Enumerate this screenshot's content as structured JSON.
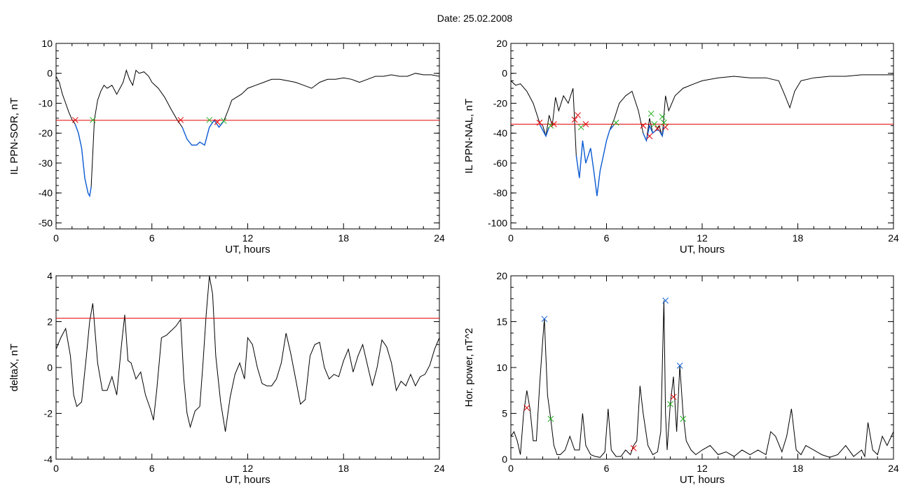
{
  "page": {
    "title": "Date:  25.02.2008"
  },
  "chart_data": [
    {
      "id": "il-sor",
      "type": "line",
      "title": "",
      "xlabel": "UT, hours",
      "ylabel": "IL PPN-SOR, nT",
      "xlim": [
        0,
        24
      ],
      "ylim": [
        -52,
        10
      ],
      "xticks": [
        0,
        6,
        12,
        18,
        24
      ],
      "yticks": [
        10,
        0,
        -10,
        -20,
        -30,
        -40,
        -50
      ],
      "threshold": {
        "value": -15.7,
        "color": "#e00000"
      },
      "series": [
        {
          "color": "#000000",
          "x": [
            0,
            0.2,
            0.4,
            0.6,
            0.8,
            1.0,
            1.2,
            1.4,
            1.6,
            1.8,
            2.0,
            2.1,
            2.2,
            2.4,
            2.6,
            2.8,
            3.0,
            3.2,
            3.5,
            3.8,
            4.0,
            4.2,
            4.4,
            4.6,
            4.8,
            5.0,
            5.2,
            5.5,
            5.8,
            6.0,
            6.4,
            6.8,
            7.2,
            7.6,
            7.9,
            8.2,
            8.5,
            8.8,
            9.0,
            9.3,
            9.6,
            9.9,
            10.2,
            10.5,
            10.8,
            11.0,
            11.3,
            11.6,
            12.0,
            12.5,
            13.0,
            13.5,
            14.0,
            14.5,
            15.0,
            15.5,
            16.0,
            16.5,
            17.0,
            17.5,
            18.0,
            18.5,
            19.0,
            19.5,
            20.0,
            20.5,
            21.0,
            21.5,
            22.0,
            22.5,
            23.0,
            23.5,
            24.0
          ],
          "y": [
            -1,
            -3,
            -7,
            -10,
            -13,
            -15.5,
            -17,
            -20,
            -25,
            -35,
            -40,
            -41,
            -38,
            -15.5,
            -9,
            -6,
            -4,
            -5,
            -4,
            -7,
            -5,
            -3,
            1,
            -2,
            -4,
            1,
            0,
            0.5,
            -1,
            -3,
            -5,
            -8,
            -12,
            -15.7,
            -18,
            -22,
            -24,
            -24,
            -23,
            -24,
            -18,
            -15.7,
            -18,
            -16,
            -12,
            -9,
            -8,
            -7,
            -5,
            -4,
            -3,
            -2,
            -2,
            -2.5,
            -3,
            -4,
            -5,
            -3,
            -2,
            -2,
            -1.5,
            -2,
            -3,
            -2,
            -1,
            -1,
            -0.5,
            -1,
            -1,
            0,
            -0.5,
            -0.5,
            -1
          ]
        },
        {
          "color": "#1060d8",
          "x": [
            1.2,
            1.4,
            1.6,
            1.8,
            2.0,
            2.1,
            2.2
          ],
          "y": [
            -17,
            -20,
            -25,
            -35,
            -40,
            -41,
            -38
          ]
        },
        {
          "color": "#1060d8",
          "x": [
            7.9,
            8.2,
            8.5,
            8.8,
            9.0,
            9.3,
            9.6,
            9.9,
            10.2,
            10.5
          ],
          "y": [
            -18,
            -22,
            -24,
            -24,
            -23,
            -24,
            -18,
            -15.7,
            -18,
            -16
          ]
        }
      ],
      "markers": [
        {
          "x": 1.2,
          "y": -15.6,
          "color": "#e00000"
        },
        {
          "x": 2.3,
          "y": -15.6,
          "color": "#20b020"
        },
        {
          "x": 7.8,
          "y": -15.6,
          "color": "#e00000"
        },
        {
          "x": 9.6,
          "y": -15.6,
          "color": "#20b020"
        },
        {
          "x": 10.1,
          "y": -16.3,
          "color": "#e00000"
        },
        {
          "x": 10.5,
          "y": -15.9,
          "color": "#20b020"
        }
      ]
    },
    {
      "id": "il-nal",
      "type": "line",
      "title": "",
      "xlabel": "UT, hours",
      "ylabel": "IL PPN-NAL, nT",
      "xlim": [
        0,
        24
      ],
      "ylim": [
        -104,
        20
      ],
      "xticks": [
        0,
        6,
        12,
        18,
        24
      ],
      "yticks": [
        20,
        0,
        -20,
        -40,
        -60,
        -80,
        -100
      ],
      "threshold": {
        "value": -34,
        "color": "#e00000"
      },
      "series": [
        {
          "color": "#000000",
          "x": [
            0,
            0.3,
            0.6,
            1.0,
            1.4,
            1.8,
            2.0,
            2.2,
            2.4,
            2.6,
            2.8,
            3.0,
            3.3,
            3.6,
            3.9,
            4.1,
            4.3,
            4.5,
            4.7,
            5.0,
            5.2,
            5.4,
            5.6,
            5.8,
            6.0,
            6.2,
            6.5,
            6.8,
            7.2,
            7.6,
            8.0,
            8.3,
            8.5,
            8.7,
            8.9,
            9.1,
            9.3,
            9.5,
            9.7,
            9.9,
            10.3,
            10.8,
            11.5,
            12.0,
            13.0,
            14.0,
            15.0,
            16.0,
            16.8,
            17.2,
            17.5,
            17.8,
            18.2,
            19.0,
            20.0,
            21.0,
            22.0,
            23.0,
            24.0
          ],
          "y": [
            -5,
            -8,
            -7,
            -12,
            -20,
            -33,
            -35,
            -42,
            -28,
            -35,
            -16,
            -25,
            -15,
            -20,
            -10,
            -55,
            -70,
            -45,
            -60,
            -50,
            -65,
            -82,
            -65,
            -55,
            -45,
            -38,
            -30,
            -20,
            -15,
            -12,
            -25,
            -40,
            -45,
            -30,
            -40,
            -38,
            -35,
            -42,
            -15,
            -25,
            -15,
            -10,
            -7,
            -5,
            -3,
            -2,
            -3,
            -3,
            -5,
            -15,
            -23,
            -12,
            -5,
            -3,
            -2,
            -2,
            -1,
            -1,
            -1
          ]
        },
        {
          "color": "#1060d8",
          "x": [
            1.8,
            2.0,
            2.2,
            2.4
          ],
          "y": [
            -34,
            -38,
            -42,
            -36
          ]
        },
        {
          "color": "#1060d8",
          "x": [
            4.1,
            4.3,
            4.5,
            4.7,
            5.0,
            5.2,
            5.4,
            5.6,
            5.8,
            6.0,
            6.2,
            6.5
          ],
          "y": [
            -55,
            -70,
            -45,
            -60,
            -50,
            -65,
            -82,
            -65,
            -55,
            -45,
            -38,
            -34
          ]
        },
        {
          "color": "#1060d8",
          "x": [
            8.3,
            8.5,
            8.7,
            8.9,
            9.1,
            9.3,
            9.5,
            9.6
          ],
          "y": [
            -40,
            -45,
            -35,
            -40,
            -38,
            -38,
            -42,
            -36
          ]
        }
      ],
      "markers": [
        {
          "x": 1.8,
          "y": -33,
          "color": "#e00000"
        },
        {
          "x": 2.5,
          "y": -35,
          "color": "#20b020"
        },
        {
          "x": 2.7,
          "y": -34,
          "color": "#e00000"
        },
        {
          "x": 4.0,
          "y": -31,
          "color": "#e00000"
        },
        {
          "x": 4.2,
          "y": -28,
          "color": "#e00000"
        },
        {
          "x": 4.4,
          "y": -36,
          "color": "#20b020"
        },
        {
          "x": 4.7,
          "y": -34,
          "color": "#e00000"
        },
        {
          "x": 6.6,
          "y": -33,
          "color": "#20b020"
        },
        {
          "x": 8.3,
          "y": -35,
          "color": "#e00000"
        },
        {
          "x": 8.7,
          "y": -42,
          "color": "#e00000"
        },
        {
          "x": 8.8,
          "y": -27,
          "color": "#20b020"
        },
        {
          "x": 9.0,
          "y": -34,
          "color": "#20b020"
        },
        {
          "x": 9.2,
          "y": -37,
          "color": "#e00000"
        },
        {
          "x": 9.5,
          "y": -29,
          "color": "#20b020"
        },
        {
          "x": 9.6,
          "y": -33,
          "color": "#20b020"
        },
        {
          "x": 9.7,
          "y": -36,
          "color": "#e00000"
        }
      ]
    },
    {
      "id": "deltax",
      "type": "line",
      "title": "",
      "xlabel": "UT, hours",
      "ylabel": "deltaX, nT",
      "xlim": [
        0,
        24
      ],
      "ylim": [
        -4,
        4
      ],
      "xticks": [
        0,
        6,
        12,
        18,
        24
      ],
      "yticks": [
        4,
        2,
        0,
        -2,
        -4
      ],
      "threshold": {
        "value": 2.15,
        "color": "#e00000"
      },
      "series": [
        {
          "color": "#000000",
          "x": [
            0,
            0.3,
            0.6,
            0.9,
            1.1,
            1.3,
            1.6,
            1.9,
            2.1,
            2.3,
            2.6,
            2.9,
            3.2,
            3.5,
            3.8,
            4.1,
            4.3,
            4.5,
            4.7,
            5.0,
            5.3,
            5.6,
            5.9,
            6.1,
            6.3,
            6.6,
            6.9,
            7.2,
            7.5,
            7.8,
            8.0,
            8.2,
            8.4,
            8.7,
            9.0,
            9.2,
            9.4,
            9.6,
            9.8,
            10.0,
            10.3,
            10.6,
            10.9,
            11.2,
            11.5,
            11.8,
            12.0,
            12.3,
            12.6,
            12.9,
            13.2,
            13.5,
            13.8,
            14.1,
            14.4,
            14.7,
            15.0,
            15.3,
            15.6,
            15.9,
            16.2,
            16.5,
            16.8,
            17.1,
            17.4,
            17.7,
            18.0,
            18.3,
            18.6,
            18.9,
            19.2,
            19.5,
            19.8,
            20.1,
            20.4,
            20.7,
            21.0,
            21.3,
            21.6,
            21.9,
            22.2,
            22.5,
            22.8,
            23.1,
            23.4,
            23.7,
            24.0
          ],
          "y": [
            0.8,
            1.3,
            1.7,
            0.5,
            -1.2,
            -1.7,
            -1.5,
            0.5,
            2.0,
            2.8,
            0.2,
            -1.0,
            -1.0,
            -0.4,
            -1.2,
            1.0,
            2.3,
            0.3,
            0.2,
            -0.5,
            -0.2,
            -1.2,
            -1.8,
            -2.3,
            -1.0,
            1.3,
            1.4,
            1.6,
            1.8,
            2.1,
            -0.5,
            -2.0,
            -2.6,
            -1.9,
            -1.7,
            0.2,
            2.3,
            4.0,
            3.2,
            0.5,
            -1.5,
            -2.8,
            -1.3,
            -0.3,
            0.2,
            -0.5,
            1.3,
            1.0,
            0.0,
            -0.7,
            -0.8,
            -0.8,
            -0.5,
            0.2,
            1.5,
            0.6,
            -0.5,
            -1.6,
            -1.4,
            0.5,
            1.0,
            1.1,
            0.0,
            -0.5,
            -0.3,
            -0.4,
            0.3,
            0.8,
            -0.2,
            0.5,
            1.0,
            0.1,
            -0.8,
            0.0,
            1.2,
            0.9,
            0.2,
            -1.0,
            -0.6,
            -0.8,
            -0.3,
            -0.8,
            -0.4,
            -0.3,
            0.1,
            0.8,
            1.3
          ]
        }
      ],
      "markers": []
    },
    {
      "id": "hor-power",
      "type": "line",
      "title": "",
      "xlabel": "UT, hours",
      "ylabel": "Hor. power, nT^2",
      "xlim": [
        0,
        24
      ],
      "ylim": [
        0,
        20
      ],
      "xticks": [
        0,
        6,
        12,
        18,
        24
      ],
      "yticks": [
        20,
        15,
        10,
        5,
        0
      ],
      "threshold": null,
      "series": [
        {
          "color": "#000000",
          "x": [
            0,
            0.2,
            0.4,
            0.6,
            0.8,
            1.0,
            1.2,
            1.4,
            1.6,
            1.8,
            2.0,
            2.1,
            2.3,
            2.5,
            2.7,
            2.9,
            3.1,
            3.4,
            3.7,
            4.0,
            4.3,
            4.5,
            4.7,
            5.0,
            5.3,
            5.6,
            5.9,
            6.1,
            6.3,
            6.6,
            6.9,
            7.2,
            7.5,
            7.7,
            7.9,
            8.1,
            8.3,
            8.6,
            8.9,
            9.2,
            9.4,
            9.6,
            9.7,
            9.8,
            10.0,
            10.2,
            10.4,
            10.6,
            10.8,
            11.0,
            11.3,
            11.6,
            12.0,
            12.5,
            13.0,
            13.5,
            14.0,
            14.5,
            15.0,
            15.5,
            16.0,
            16.3,
            16.6,
            17.0,
            17.3,
            17.6,
            17.9,
            18.2,
            18.5,
            19.0,
            19.5,
            20.0,
            20.5,
            21.0,
            21.5,
            22.0,
            22.2,
            22.4,
            22.7,
            23.0,
            23.3,
            23.6,
            24.0
          ],
          "y": [
            2.5,
            3.0,
            2.0,
            0.5,
            5.0,
            7.5,
            5.5,
            2.0,
            2.0,
            8.0,
            13.0,
            15.3,
            7.0,
            4.4,
            1.5,
            0.5,
            0.5,
            1.0,
            2.5,
            1.0,
            1.0,
            5.0,
            1.5,
            0.5,
            0.3,
            0.2,
            0.8,
            5.5,
            1.0,
            0.3,
            0.3,
            1.0,
            0.5,
            1.5,
            2.0,
            8.0,
            5.0,
            1.5,
            0.5,
            0.8,
            3.0,
            17.3,
            5.0,
            1.0,
            6.0,
            9.0,
            3.0,
            10.2,
            5.0,
            2.0,
            1.0,
            0.5,
            1.0,
            1.5,
            0.5,
            0.8,
            0.3,
            1.0,
            0.5,
            1.0,
            0.5,
            3.0,
            2.5,
            0.8,
            2.5,
            5.5,
            1.0,
            0.5,
            1.5,
            1.0,
            0.5,
            0.2,
            0.5,
            1.5,
            0.3,
            1.0,
            0.3,
            4.0,
            1.0,
            0.5,
            2.5,
            1.5,
            3.0
          ]
        }
      ],
      "markers": [
        {
          "x": 1.0,
          "y": 5.6,
          "color": "#e00000"
        },
        {
          "x": 2.1,
          "y": 15.3,
          "color": "#1060d8"
        },
        {
          "x": 2.5,
          "y": 4.4,
          "color": "#20b020"
        },
        {
          "x": 7.7,
          "y": 1.2,
          "color": "#e00000"
        },
        {
          "x": 9.7,
          "y": 17.3,
          "color": "#1060d8"
        },
        {
          "x": 10.0,
          "y": 6.0,
          "color": "#20b020"
        },
        {
          "x": 10.2,
          "y": 6.8,
          "color": "#e00000"
        },
        {
          "x": 10.6,
          "y": 10.2,
          "color": "#1060d8"
        },
        {
          "x": 10.8,
          "y": 4.4,
          "color": "#20b020"
        }
      ]
    }
  ]
}
